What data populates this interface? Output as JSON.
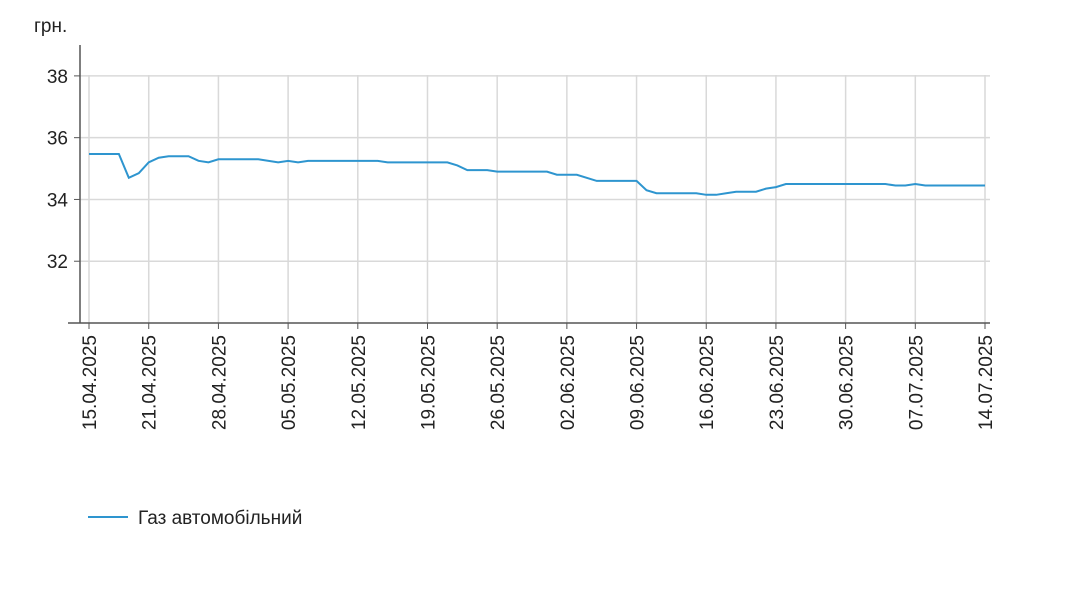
{
  "chart_data": {
    "type": "line",
    "y_label": "грн.",
    "x": [
      "15.04.2025",
      "18.04.2025",
      "19.04.2025",
      "20.04.2025",
      "21.04.2025",
      "22.04.2025",
      "23.04.2025",
      "25.04.2025",
      "26.04.2025",
      "27.04.2025",
      "28.04.2025",
      "02.05.2025",
      "04.05.2025",
      "05.05.2025",
      "06.05.2025",
      "07.05.2025",
      "14.05.2025",
      "15.05.2025",
      "21.05.2025",
      "22.05.2025",
      "23.05.2025",
      "25.05.2025",
      "26.05.2025",
      "31.05.2025",
      "01.06.2025",
      "03.06.2025",
      "05.06.2025",
      "09.06.2025",
      "10.06.2025",
      "11.06.2025",
      "15.06.2025",
      "16.06.2025",
      "17.06.2025",
      "18.06.2025",
      "19.06.2025",
      "21.06.2025",
      "22.06.2025",
      "23.06.2025",
      "24.06.2025",
      "04.07.2025",
      "05.07.2025",
      "06.07.2025",
      "07.07.2025",
      "08.07.2025",
      "14.07.2025"
    ],
    "series": [
      {
        "name": "Газ автомобільний",
        "color": "#2e95cf",
        "values": [
          35.47,
          35.47,
          34.7,
          34.85,
          35.2,
          35.35,
          35.4,
          35.4,
          35.25,
          35.2,
          35.3,
          35.3,
          35.2,
          35.25,
          35.2,
          35.25,
          35.25,
          35.2,
          35.2,
          35.1,
          34.95,
          34.95,
          34.9,
          34.9,
          34.8,
          34.8,
          34.6,
          34.6,
          34.3,
          34.2,
          34.2,
          34.15,
          34.15,
          34.2,
          34.25,
          34.25,
          34.35,
          34.4,
          34.5,
          34.5,
          34.45,
          34.45,
          34.5,
          34.45,
          34.45
        ]
      }
    ],
    "xlim": [
      "15.04.2025",
      "14.07.2025"
    ],
    "xticks": [
      "15.04.2025",
      "21.04.2025",
      "28.04.2025",
      "05.05.2025",
      "12.05.2025",
      "19.05.2025",
      "26.05.2025",
      "02.06.2025",
      "09.06.2025",
      "16.06.2025",
      "23.06.2025",
      "30.06.2025",
      "07.07.2025",
      "14.07.2025"
    ],
    "ylim": [
      30,
      39
    ],
    "yticks": [
      32,
      34,
      36,
      38
    ],
    "grid": true,
    "legend": "bottom-left"
  }
}
